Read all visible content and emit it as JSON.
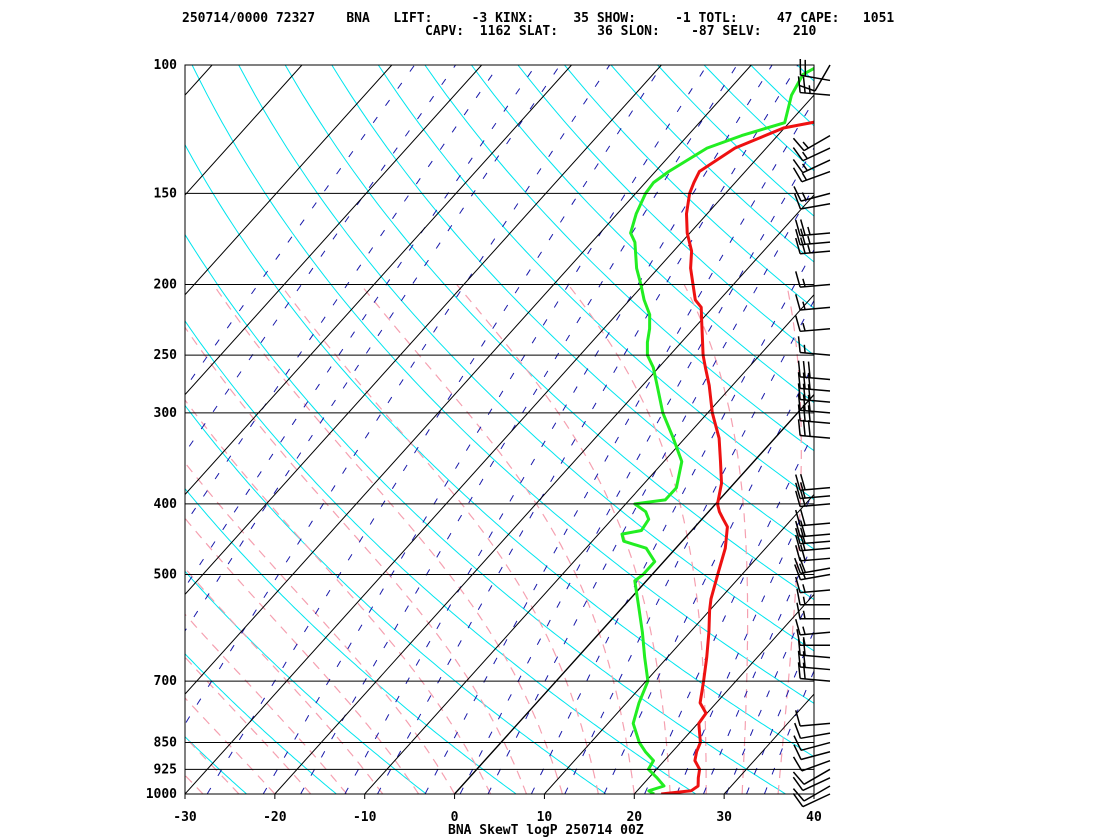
{
  "header": {
    "line1": "250714/0000 72327    BNA   LIFT:     -3 KINX:     35 SHOW:     -1 TOTL:     47 CAPE:   1051",
    "line2": "CAPV:  1162 SLAT:     36 SLON:    -87 SELV:    210"
  },
  "chart_data": {
    "type": "line",
    "title": "BNA SkewT logP 250714 00Z",
    "xlabel": "",
    "ylabel": "",
    "x_ticks": [
      -30,
      -20,
      -10,
      0,
      10,
      20,
      30,
      40
    ],
    "xlim": [
      -30,
      40
    ],
    "ylim": [
      1000,
      100
    ],
    "y_scale": "log (inverted)",
    "y_ticks": [
      100,
      150,
      200,
      250,
      300,
      400,
      500,
      700,
      850,
      925,
      1000
    ],
    "grid": true,
    "colors": {
      "temperature": "#ee1111",
      "dewpoint": "#22ee22",
      "dry_adiabat": "#00e5ee",
      "moist_adiabat": "#f5a0b0",
      "mixing_ratio": "#1a1aaa",
      "isotherm": "#000000",
      "isobar": "#000000",
      "wind": "#000000"
    },
    "series": [
      {
        "key": "temperature",
        "points": [
          [
            1000,
            23
          ],
          [
            990,
            26
          ],
          [
            975,
            26.3
          ],
          [
            950,
            25.5
          ],
          [
            925,
            24.8
          ],
          [
            900,
            23.4
          ],
          [
            875,
            22.7
          ],
          [
            850,
            22.2
          ],
          [
            800,
            20.1
          ],
          [
            775,
            19.9
          ],
          [
            750,
            18.2
          ],
          [
            700,
            16.4
          ],
          [
            650,
            14.4
          ],
          [
            600,
            12.1
          ],
          [
            560,
            10.0
          ],
          [
            540,
            9.0
          ],
          [
            500,
            7.3
          ],
          [
            460,
            5.5
          ],
          [
            430,
            3.6
          ],
          [
            420,
            2.4
          ],
          [
            410,
            1.2
          ],
          [
            400,
            0.2
          ],
          [
            375,
            -1.4
          ],
          [
            350,
            -3.7
          ],
          [
            325,
            -6.2
          ],
          [
            300,
            -9.5
          ],
          [
            275,
            -12.6
          ],
          [
            260,
            -14.8
          ],
          [
            250,
            -16.3
          ],
          [
            225,
            -19.8
          ],
          [
            215,
            -21.3
          ],
          [
            210,
            -22.7
          ],
          [
            200,
            -24.5
          ],
          [
            190,
            -26.4
          ],
          [
            180,
            -28.0
          ],
          [
            170,
            -30.3
          ],
          [
            160,
            -32.3
          ],
          [
            150,
            -34.0
          ],
          [
            145,
            -34.6
          ],
          [
            140,
            -35.1
          ],
          [
            130,
            -33.5
          ],
          [
            122,
            -30.1
          ],
          [
            118,
            -25.0
          ],
          [
            110,
            -23.0
          ],
          [
            103,
            -23.0
          ],
          [
            100,
            -24.0
          ]
        ]
      },
      {
        "key": "dewpoint",
        "points": [
          [
            1000,
            22.2
          ],
          [
            990,
            21.3
          ],
          [
            975,
            22.5
          ],
          [
            950,
            20.9
          ],
          [
            925,
            19.1
          ],
          [
            900,
            18.8
          ],
          [
            875,
            17.0
          ],
          [
            850,
            15.4
          ],
          [
            800,
            12.8
          ],
          [
            750,
            11.4
          ],
          [
            700,
            10.2
          ],
          [
            650,
            7.5
          ],
          [
            600,
            4.7
          ],
          [
            550,
            1.5
          ],
          [
            510,
            -1.3
          ],
          [
            500,
            -1.0
          ],
          [
            480,
            -1.0
          ],
          [
            460,
            -3.3
          ],
          [
            450,
            -6.5
          ],
          [
            440,
            -7.4
          ],
          [
            435,
            -5.6
          ],
          [
            420,
            -5.9
          ],
          [
            410,
            -7.0
          ],
          [
            400,
            -9.0
          ],
          [
            395,
            -6.0
          ],
          [
            380,
            -6.0
          ],
          [
            350,
            -8.0
          ],
          [
            325,
            -11.3
          ],
          [
            300,
            -15.0
          ],
          [
            275,
            -18.4
          ],
          [
            260,
            -20.6
          ],
          [
            250,
            -22.5
          ],
          [
            240,
            -23.8
          ],
          [
            230,
            -24.9
          ],
          [
            220,
            -26.3
          ],
          [
            210,
            -28.4
          ],
          [
            200,
            -30.3
          ],
          [
            190,
            -32.4
          ],
          [
            175,
            -35.2
          ],
          [
            170,
            -36.6
          ],
          [
            160,
            -37.9
          ],
          [
            150,
            -38.9
          ],
          [
            145,
            -39.1
          ],
          [
            140,
            -38.5
          ],
          [
            130,
            -36.6
          ],
          [
            125,
            -34.0
          ],
          [
            120,
            -30.5
          ],
          [
            110,
            -32.5
          ],
          [
            103,
            -33.3
          ],
          [
            100,
            -32.3
          ]
        ]
      }
    ],
    "winds": [
      {
        "p": 1000,
        "dir": 245,
        "spd": 10
      },
      {
        "p": 975,
        "dir": 240,
        "spd": 10
      },
      {
        "p": 950,
        "dir": 245,
        "spd": 10
      },
      {
        "p": 925,
        "dir": 240,
        "spd": 10
      },
      {
        "p": 900,
        "dir": 250,
        "spd": 10
      },
      {
        "p": 875,
        "dir": 255,
        "spd": 10
      },
      {
        "p": 850,
        "dir": 255,
        "spd": 10
      },
      {
        "p": 825,
        "dir": 260,
        "spd": 10
      },
      {
        "p": 800,
        "dir": 265,
        "spd": 10
      },
      {
        "p": 700,
        "dir": 275,
        "spd": 20
      },
      {
        "p": 675,
        "dir": 275,
        "spd": 20
      },
      {
        "p": 650,
        "dir": 275,
        "spd": 20
      },
      {
        "p": 625,
        "dir": 270,
        "spd": 15
      },
      {
        "p": 600,
        "dir": 265,
        "spd": 15
      },
      {
        "p": 575,
        "dir": 270,
        "spd": 15
      },
      {
        "p": 550,
        "dir": 270,
        "spd": 15
      },
      {
        "p": 525,
        "dir": 265,
        "spd": 15
      },
      {
        "p": 500,
        "dir": 260,
        "spd": 20
      },
      {
        "p": 490,
        "dir": 260,
        "spd": 20
      },
      {
        "p": 475,
        "dir": 265,
        "spd": 20
      },
      {
        "p": 460,
        "dir": 265,
        "spd": 20
      },
      {
        "p": 450,
        "dir": 265,
        "spd": 20
      },
      {
        "p": 440,
        "dir": 265,
        "spd": 20
      },
      {
        "p": 425,
        "dir": 265,
        "spd": 20
      },
      {
        "p": 400,
        "dir": 265,
        "spd": 20
      },
      {
        "p": 390,
        "dir": 265,
        "spd": 20
      },
      {
        "p": 380,
        "dir": 265,
        "spd": 20
      },
      {
        "p": 325,
        "dir": 275,
        "spd": 30
      },
      {
        "p": 310,
        "dir": 275,
        "spd": 30
      },
      {
        "p": 300,
        "dir": 275,
        "spd": 30
      },
      {
        "p": 290,
        "dir": 275,
        "spd": 30
      },
      {
        "p": 280,
        "dir": 275,
        "spd": 30
      },
      {
        "p": 270,
        "dir": 275,
        "spd": 30
      },
      {
        "p": 250,
        "dir": 275,
        "spd": 15
      },
      {
        "p": 230,
        "dir": 265,
        "spd": 15
      },
      {
        "p": 215,
        "dir": 265,
        "spd": 15
      },
      {
        "p": 200,
        "dir": 265,
        "spd": 15
      },
      {
        "p": 180,
        "dir": 265,
        "spd": 25
      },
      {
        "p": 175,
        "dir": 265,
        "spd": 25
      },
      {
        "p": 170,
        "dir": 265,
        "spd": 25
      },
      {
        "p": 155,
        "dir": 260,
        "spd": 10
      },
      {
        "p": 150,
        "dir": 255,
        "spd": 15
      },
      {
        "p": 140,
        "dir": 250,
        "spd": 15
      },
      {
        "p": 135,
        "dir": 245,
        "spd": 15
      },
      {
        "p": 130,
        "dir": 245,
        "spd": 15
      },
      {
        "p": 125,
        "dir": 240,
        "spd": 15
      },
      {
        "p": 110,
        "dir": 275,
        "spd": 25
      },
      {
        "p": 105,
        "dir": 280,
        "spd": 20
      },
      {
        "p": 100,
        "dir": 210,
        "spd": 10
      }
    ]
  }
}
